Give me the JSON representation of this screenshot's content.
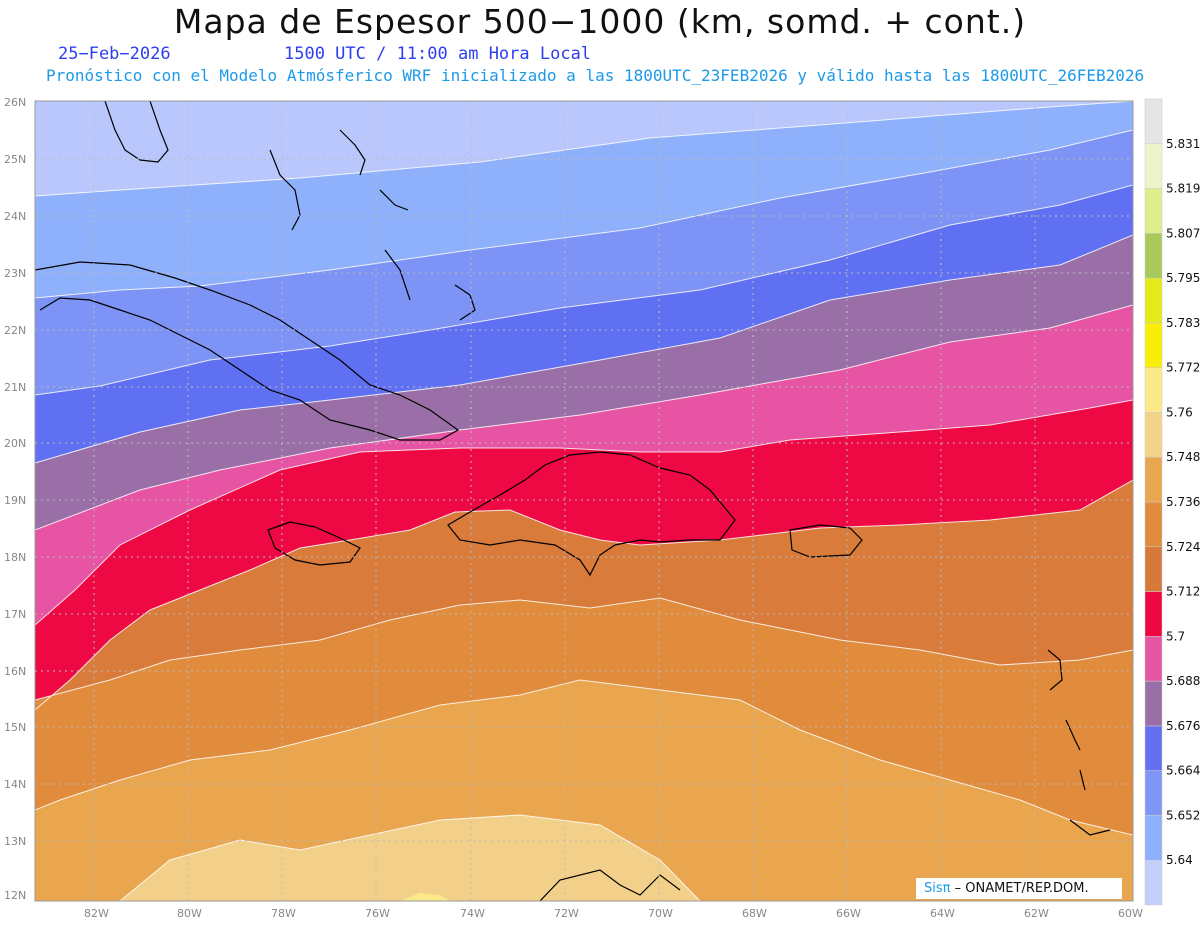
{
  "header": {
    "title": "Mapa de Espesor 500−1000 (km, somd. + cont.)",
    "date": "25−Feb−2026",
    "time": "1500 UTC / 11:00 am Hora Local",
    "forecast": "Pronóstico con el Modelo Atmósferico WRF inicializado a las 1800UTC_23FEB2026 y válido hasta las  1800UTC_26FEB2026"
  },
  "map": {
    "lat_labels": [
      "26N",
      "25N",
      "24N",
      "23N",
      "22N",
      "21N",
      "20N",
      "19N",
      "18N",
      "17N",
      "16N",
      "15N",
      "14N",
      "13N",
      "12N"
    ],
    "lon_labels": [
      "82W",
      "80W",
      "78W",
      "76W",
      "74W",
      "72W",
      "70W",
      "68W",
      "66W",
      "64W",
      "62W",
      "60W"
    ],
    "lat_range": [
      12,
      26
    ],
    "lon_range": [
      -83.2,
      -60
    ],
    "grid": true
  },
  "colorbar": {
    "labels": [
      "5.64",
      "5.652",
      "5.664",
      "5.676",
      "5.688",
      "5.7",
      "5.712",
      "5.724",
      "5.736",
      "5.748",
      "5.76",
      "5.772",
      "5.783",
      "5.795",
      "5.807",
      "5.819",
      "5.831"
    ],
    "colors": [
      "#c4d0fc",
      "#8fb0fc",
      "#7f96f7",
      "#6470f2",
      "#9a6fa8",
      "#e756a3",
      "#ee0842",
      "#d67a3c",
      "#e08b3d",
      "#e9a650",
      "#f3d289",
      "#fbe98a",
      "#f9ee08",
      "#e3ea1a",
      "#a9c95a",
      "#dcef8c",
      "#eef4c7",
      "#e5e5e5"
    ]
  },
  "credit": {
    "brand": "Sisπ",
    "org": "– ONAMET/REP.DOM."
  }
}
